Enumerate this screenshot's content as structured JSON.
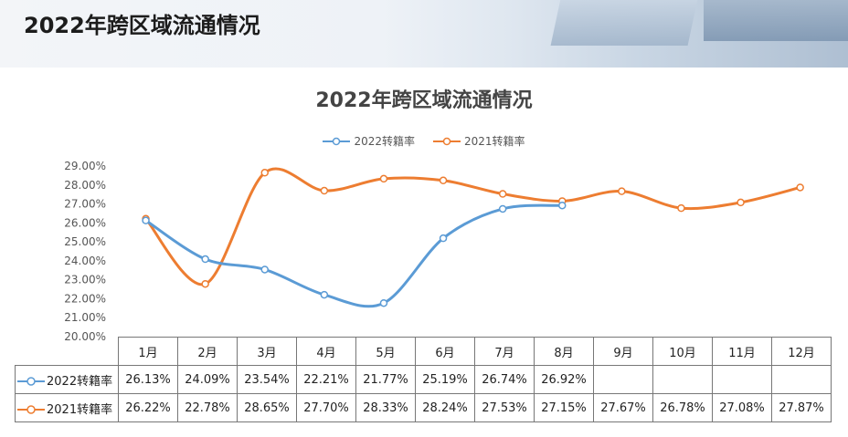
{
  "banner": {
    "title": "2022年跨区域流通情况"
  },
  "chart_data": {
    "type": "line",
    "title": "2022年跨区域流通情况",
    "categories": [
      "1月",
      "2月",
      "3月",
      "4月",
      "5月",
      "6月",
      "7月",
      "8月",
      "9月",
      "10月",
      "11月",
      "12月"
    ],
    "series": [
      {
        "name": "2022转籍率",
        "color": "#5b9bd5",
        "values": [
          26.13,
          24.09,
          23.54,
          22.21,
          21.77,
          25.19,
          26.74,
          26.92,
          null,
          null,
          null,
          null
        ],
        "labels": [
          "26.13%",
          "24.09%",
          "23.54%",
          "22.21%",
          "21.77%",
          "25.19%",
          "26.74%",
          "26.92%",
          "",
          "",
          "",
          ""
        ]
      },
      {
        "name": "2021转籍率",
        "color": "#ed7d31",
        "values": [
          26.22,
          22.78,
          28.65,
          27.7,
          28.33,
          28.24,
          27.53,
          27.15,
          27.67,
          26.78,
          27.08,
          27.87
        ],
        "labels": [
          "26.22%",
          "22.78%",
          "28.65%",
          "27.70%",
          "28.33%",
          "28.24%",
          "27.53%",
          "27.15%",
          "27.67%",
          "26.78%",
          "27.08%",
          "27.87%"
        ]
      }
    ],
    "ylim": [
      20,
      29
    ],
    "yticks": [
      "20.00%",
      "21.00%",
      "22.00%",
      "23.00%",
      "24.00%",
      "25.00%",
      "26.00%",
      "27.00%",
      "28.00%",
      "29.00%"
    ],
    "legend": "top-center",
    "grid": false
  }
}
